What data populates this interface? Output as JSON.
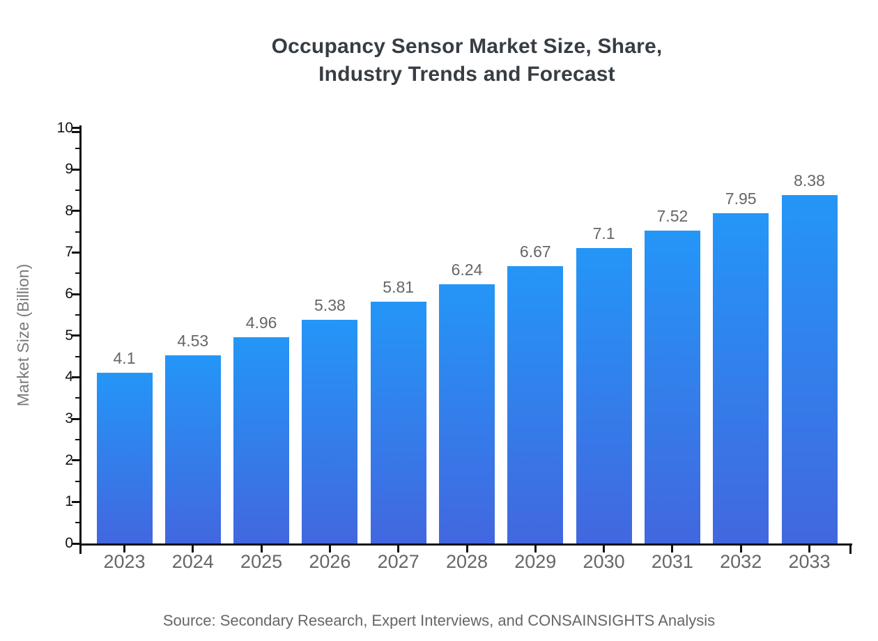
{
  "title": {
    "line1": "Occupancy Sensor Market Size, Share,",
    "line2": "Industry Trends and Forecast"
  },
  "source": "Source: Secondary Research, Expert Interviews, and CONSAINSIGHTS Analysis",
  "chart_data": {
    "type": "bar",
    "title": "Occupancy Sensor Market Size, Share, Industry Trends and Forecast",
    "categories": [
      "2023",
      "2024",
      "2025",
      "2026",
      "2027",
      "2028",
      "2029",
      "2030",
      "2031",
      "2032",
      "2033"
    ],
    "values": [
      4.1,
      4.53,
      4.96,
      5.38,
      5.81,
      6.24,
      6.67,
      7.1,
      7.52,
      7.95,
      8.38
    ],
    "value_labels": [
      "4.1",
      "4.53",
      "4.96",
      "5.38",
      "5.81",
      "6.24",
      "6.67",
      "7.1",
      "7.52",
      "7.95",
      "8.38"
    ],
    "xlabel": "",
    "ylabel": "Market Size (Billion)",
    "ylim": [
      0,
      10
    ],
    "y_major_tick_step": 1,
    "y_minor_tick_step": 0.5,
    "grid": false,
    "legend": "none",
    "bar_color_top": "#2496f7",
    "bar_color_bottom": "#4267df"
  },
  "colors": {
    "background": "#ffffff",
    "title_text": "#373d43",
    "axis": "#111111",
    "y_tick_label": "#111111",
    "x_tick_label": "#666666",
    "value_label": "#666666",
    "axis_title": "#7a7a7a",
    "source_text": "#666666"
  }
}
